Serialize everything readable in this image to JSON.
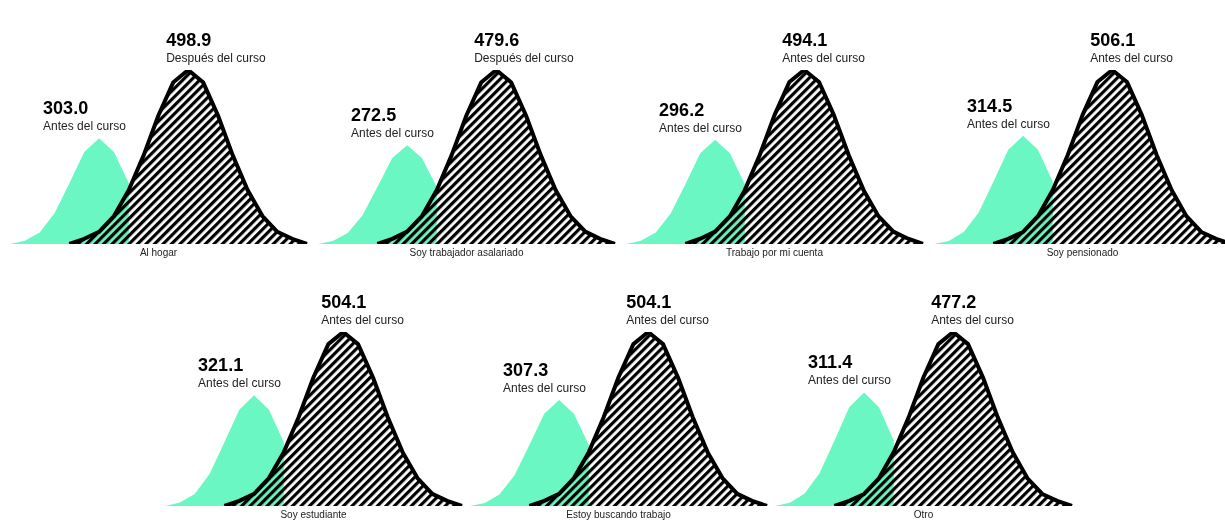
{
  "chart_data": [
    {
      "type": "area",
      "xlabel": "Al hogar",
      "categories": [
        null,
        null,
        null,
        null,
        null,
        null,
        null,
        null,
        null,
        null,
        null,
        null,
        null,
        null,
        null,
        null,
        null,
        null,
        null,
        null,
        null
      ],
      "series": [
        {
          "name": "Antes del curso",
          "color": "#6af7c3",
          "values": [
            0,
            9,
            33,
            88,
            174,
            264,
            303.0,
            264,
            174,
            null,
            null,
            null,
            null,
            null,
            null,
            null,
            null,
            null,
            null,
            null,
            null
          ],
          "value_labels": [
            null,
            null,
            null,
            null,
            null,
            null,
            "303.0",
            null,
            null,
            null,
            null,
            null,
            null,
            null,
            null,
            null,
            null,
            null,
            null,
            null,
            null
          ]
        },
        {
          "name": "Después del curso",
          "color": "#000000",
          "values": [
            null,
            null,
            null,
            null,
            0,
            15,
            35,
            80,
            155,
            254,
            369,
            464,
            498.9,
            464,
            369,
            254,
            155,
            80,
            35,
            15,
            0
          ],
          "value_labels": [
            null,
            null,
            null,
            null,
            null,
            null,
            null,
            null,
            null,
            null,
            null,
            null,
            "498.9",
            null,
            null,
            null,
            null,
            null,
            null,
            null,
            null
          ]
        }
      ]
    },
    {
      "type": "area",
      "xlabel": "Soy trabajador asalariado",
      "categories": [
        null,
        null,
        null,
        null,
        null,
        null,
        null,
        null,
        null,
        null,
        null,
        null,
        null,
        null,
        null,
        null,
        null,
        null,
        null,
        null,
        null
      ],
      "series": [
        {
          "name": "Antes del curso",
          "color": "#6af7c3",
          "values": [
            0,
            8,
            30,
            79,
            157,
            237,
            272.5,
            237,
            157,
            null,
            null,
            null,
            null,
            null,
            null,
            null,
            null,
            null,
            null,
            null,
            null
          ],
          "value_labels": [
            null,
            null,
            null,
            null,
            null,
            null,
            "272.5",
            null,
            null,
            null,
            null,
            null,
            null,
            null,
            null,
            null,
            null,
            null,
            null,
            null,
            null
          ]
        },
        {
          "name": "Después del curso",
          "color": "#000000",
          "values": [
            null,
            null,
            null,
            null,
            0,
            14,
            34,
            77,
            149,
            245,
            355,
            446,
            479.6,
            446,
            355,
            245,
            149,
            77,
            34,
            14,
            0
          ],
          "value_labels": [
            null,
            null,
            null,
            null,
            null,
            null,
            null,
            null,
            null,
            null,
            null,
            null,
            "479.6",
            null,
            null,
            null,
            null,
            null,
            null,
            null,
            null
          ]
        }
      ]
    },
    {
      "type": "area",
      "xlabel": "Trabajo por mi cuenta",
      "categories": [
        null,
        null,
        null,
        null,
        null,
        null,
        null,
        null,
        null,
        null,
        null,
        null,
        null,
        null,
        null,
        null,
        null,
        null,
        null,
        null,
        null
      ],
      "series": [
        {
          "name": "Antes del curso",
          "color": "#6af7c3",
          "values": [
            0,
            9,
            33,
            86,
            170,
            258,
            296.2,
            258,
            170,
            null,
            null,
            null,
            null,
            null,
            null,
            null,
            null,
            null,
            null,
            null,
            null
          ],
          "value_labels": [
            null,
            null,
            null,
            null,
            null,
            null,
            "296.2",
            null,
            null,
            null,
            null,
            null,
            null,
            null,
            null,
            null,
            null,
            null,
            null,
            null,
            null
          ]
        },
        {
          "name": "Antes del curso",
          "color": "#000000",
          "values": [
            null,
            null,
            null,
            null,
            0,
            15,
            35,
            79,
            153,
            252,
            366,
            460,
            494.1,
            460,
            366,
            252,
            153,
            79,
            35,
            15,
            0
          ],
          "value_labels": [
            null,
            null,
            null,
            null,
            null,
            null,
            null,
            null,
            null,
            null,
            null,
            null,
            "494.1",
            null,
            null,
            null,
            null,
            null,
            null,
            null,
            null
          ]
        }
      ]
    },
    {
      "type": "area",
      "xlabel": "Soy pensionado",
      "categories": [
        null,
        null,
        null,
        null,
        null,
        null,
        null,
        null,
        null,
        null,
        null,
        null,
        null,
        null,
        null,
        null,
        null,
        null,
        null,
        null,
        null
      ],
      "series": [
        {
          "name": "Antes del curso",
          "color": "#6af7c3",
          "values": [
            0,
            9,
            35,
            91,
            181,
            274,
            314.5,
            274,
            181,
            null,
            null,
            null,
            null,
            null,
            null,
            null,
            null,
            null,
            null,
            null,
            null
          ],
          "value_labels": [
            null,
            null,
            null,
            null,
            null,
            null,
            "314.5",
            null,
            null,
            null,
            null,
            null,
            null,
            null,
            null,
            null,
            null,
            null,
            null,
            null,
            null
          ]
        },
        {
          "name": "Antes del curso",
          "color": "#000000",
          "values": [
            null,
            null,
            null,
            null,
            0,
            15,
            35,
            81,
            157,
            258,
            375,
            471,
            506.1,
            471,
            375,
            258,
            157,
            81,
            35,
            15,
            0
          ],
          "value_labels": [
            null,
            null,
            null,
            null,
            null,
            null,
            null,
            null,
            null,
            null,
            null,
            null,
            "506.1",
            null,
            null,
            null,
            null,
            null,
            null,
            null,
            null
          ]
        }
      ]
    },
    {
      "type": "area",
      "xlabel": "Soy estudiante",
      "categories": [
        null,
        null,
        null,
        null,
        null,
        null,
        null,
        null,
        null,
        null,
        null,
        null,
        null,
        null,
        null,
        null,
        null,
        null,
        null,
        null,
        null
      ],
      "series": [
        {
          "name": "Antes del curso",
          "color": "#6af7c3",
          "values": [
            0,
            10,
            35,
            93,
            185,
            279,
            321.1,
            279,
            185,
            null,
            null,
            null,
            null,
            null,
            null,
            null,
            null,
            null,
            null,
            null,
            null
          ],
          "value_labels": [
            null,
            null,
            null,
            null,
            null,
            null,
            "321.1",
            null,
            null,
            null,
            null,
            null,
            null,
            null,
            null,
            null,
            null,
            null,
            null,
            null,
            null
          ]
        },
        {
          "name": "Antes del curso",
          "color": "#000000",
          "values": [
            null,
            null,
            null,
            null,
            0,
            15,
            35,
            81,
            156,
            257,
            373,
            469,
            504.1,
            469,
            373,
            257,
            156,
            81,
            35,
            15,
            0
          ],
          "value_labels": [
            null,
            null,
            null,
            null,
            null,
            null,
            null,
            null,
            null,
            null,
            null,
            null,
            "504.1",
            null,
            null,
            null,
            null,
            null,
            null,
            null,
            null
          ]
        }
      ]
    },
    {
      "type": "area",
      "xlabel": "Estoy buscando trabajo",
      "categories": [
        null,
        null,
        null,
        null,
        null,
        null,
        null,
        null,
        null,
        null,
        null,
        null,
        null,
        null,
        null,
        null,
        null,
        null,
        null,
        null,
        null
      ],
      "series": [
        {
          "name": "Antes del curso",
          "color": "#6af7c3",
          "values": [
            0,
            9,
            34,
            89,
            177,
            267,
            307.3,
            267,
            177,
            null,
            null,
            null,
            null,
            null,
            null,
            null,
            null,
            null,
            null,
            null,
            null
          ],
          "value_labels": [
            null,
            null,
            null,
            null,
            null,
            null,
            "307.3",
            null,
            null,
            null,
            null,
            null,
            null,
            null,
            null,
            null,
            null,
            null,
            null,
            null,
            null
          ]
        },
        {
          "name": "Antes del curso",
          "color": "#000000",
          "values": [
            null,
            null,
            null,
            null,
            0,
            15,
            35,
            81,
            156,
            257,
            373,
            469,
            504.1,
            469,
            373,
            257,
            156,
            81,
            35,
            15,
            0
          ],
          "value_labels": [
            null,
            null,
            null,
            null,
            null,
            null,
            null,
            null,
            null,
            null,
            null,
            null,
            "504.1",
            null,
            null,
            null,
            null,
            null,
            null,
            null,
            null
          ]
        }
      ]
    },
    {
      "type": "area",
      "xlabel": "Otro",
      "categories": [
        null,
        null,
        null,
        null,
        null,
        null,
        null,
        null,
        null,
        null,
        null,
        null,
        null,
        null,
        null,
        null,
        null,
        null,
        null,
        null,
        null
      ],
      "series": [
        {
          "name": "Antes del curso",
          "color": "#6af7c3",
          "values": [
            0,
            9,
            34,
            90,
            179,
            271,
            311.4,
            271,
            179,
            null,
            null,
            null,
            null,
            null,
            null,
            null,
            null,
            null,
            null,
            null,
            null
          ],
          "value_labels": [
            null,
            null,
            null,
            null,
            null,
            null,
            "311.4",
            null,
            null,
            null,
            null,
            null,
            null,
            null,
            null,
            null,
            null,
            null,
            null,
            null,
            null
          ]
        },
        {
          "name": "Antes del curso",
          "color": "#000000",
          "values": [
            null,
            null,
            null,
            null,
            0,
            14,
            33,
            76,
            148,
            243,
            353,
            444,
            477.2,
            444,
            353,
            243,
            148,
            76,
            33,
            14,
            0
          ],
          "value_labels": [
            null,
            null,
            null,
            null,
            null,
            null,
            null,
            null,
            null,
            null,
            null,
            null,
            "477.2",
            null,
            null,
            null,
            null,
            null,
            null,
            null,
            null
          ]
        }
      ]
    }
  ]
}
